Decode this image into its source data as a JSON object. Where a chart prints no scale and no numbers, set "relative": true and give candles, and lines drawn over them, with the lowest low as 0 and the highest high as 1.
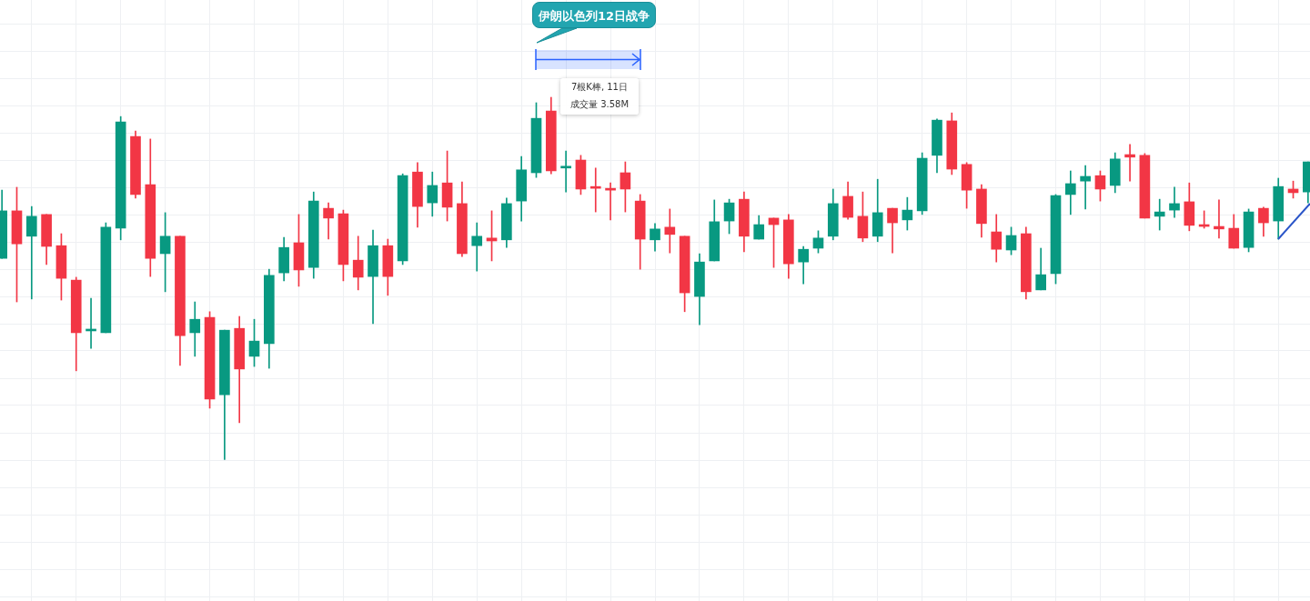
{
  "chart_data": {
    "type": "candlestick",
    "relative": true,
    "grid": true,
    "legend": false,
    "tick_labels": false,
    "annotations": [
      "伊朗以色列12日战争",
      "7根K棒, 11日",
      "成交量 3.58M"
    ],
    "categories": [
      null,
      null,
      null,
      null,
      null,
      null,
      null,
      null,
      null,
      null,
      null,
      null,
      null,
      null,
      null,
      null,
      null,
      null,
      null,
      null,
      null,
      null,
      null,
      null,
      null,
      null,
      null,
      null,
      null,
      null,
      null,
      null,
      null,
      null,
      null,
      null,
      null,
      null,
      null,
      null,
      null,
      null,
      null,
      null,
      null,
      null,
      null,
      null,
      null,
      null,
      null,
      null,
      null,
      null,
      null,
      null,
      null,
      null,
      null,
      null,
      null,
      null,
      null,
      null,
      null,
      null,
      null,
      null,
      null,
      null,
      null,
      null,
      null,
      null,
      null,
      null,
      null,
      null,
      null,
      null,
      null,
      null,
      null,
      null,
      null,
      null,
      null,
      null,
      null
    ],
    "ohlc": [
      [
        0.556,
        0.744,
        0.556,
        0.687
      ],
      [
        0.687,
        0.752,
        0.436,
        0.596
      ],
      [
        0.617,
        0.699,
        0.444,
        0.672
      ],
      [
        0.677,
        0.677,
        0.539,
        0.589
      ],
      [
        0.591,
        0.624,
        0.441,
        0.501
      ],
      [
        0.496,
        0.504,
        0.246,
        0.351
      ],
      [
        0.356,
        0.446,
        0.308,
        0.361
      ],
      [
        0.351,
        0.654,
        0.351,
        0.642
      ],
      [
        0.639,
        0.947,
        0.607,
        0.932
      ],
      [
        0.892,
        0.907,
        0.722,
        0.732
      ],
      [
        0.759,
        0.885,
        0.506,
        0.556
      ],
      [
        0.569,
        0.682,
        0.464,
        0.617
      ],
      [
        0.617,
        0.617,
        0.261,
        0.343
      ],
      [
        0.351,
        0.436,
        0.286,
        0.388
      ],
      [
        0.393,
        0.409,
        0.143,
        0.168
      ],
      [
        0.18,
        0.358,
        0,
        0.358
      ],
      [
        0.363,
        0.396,
        0.103,
        0.251
      ],
      [
        0.286,
        0.388,
        0.258,
        0.328
      ],
      [
        0.321,
        0.526,
        0.253,
        0.509
      ],
      [
        0.516,
        0.614,
        0.494,
        0.586
      ],
      [
        0.599,
        0.677,
        0.479,
        0.524
      ],
      [
        0.531,
        0.739,
        0.501,
        0.714
      ],
      [
        0.694,
        0.709,
        0.609,
        0.667
      ],
      [
        0.679,
        0.689,
        0.494,
        0.539
      ],
      [
        0.551,
        0.617,
        0.469,
        0.504
      ],
      [
        0.506,
        0.634,
        0.376,
        0.591
      ],
      [
        0.591,
        0.609,
        0.454,
        0.506
      ],
      [
        0.549,
        0.789,
        0.539,
        0.784
      ],
      [
        0.794,
        0.82,
        0.642,
        0.699
      ],
      [
        0.709,
        0.794,
        0.672,
        0.757
      ],
      [
        0.764,
        0.852,
        0.659,
        0.697
      ],
      [
        0.707,
        0.767,
        0.561,
        0.569
      ],
      [
        0.591,
        0.654,
        0.521,
        0.617
      ],
      [
        0.612,
        0.687,
        0.549,
        0.604
      ],
      [
        0.607,
        0.722,
        0.586,
        0.707
      ],
      [
        0.714,
        0.837,
        0.659,
        0.8
      ],
      [
        0.792,
        0.985,
        0.779,
        0.942
      ],
      [
        0.962,
        1,
        0.789,
        0.797
      ],
      [
        0.805,
        0.852,
        0.739,
        0.81
      ],
      [
        0.827,
        0.84,
        0.732,
        0.747
      ],
      [
        0.754,
        0.805,
        0.684,
        0.749
      ],
      [
        0.749,
        0.764,
        0.662,
        0.744
      ],
      [
        0.792,
        0.822,
        0.684,
        0.747
      ],
      [
        0.714,
        0.732,
        0.526,
        0.609
      ],
      [
        0.607,
        0.652,
        0.576,
        0.637
      ],
      [
        0.642,
        0.692,
        0.571,
        0.622
      ],
      [
        0.617,
        0.617,
        0.409,
        0.461
      ],
      [
        0.451,
        0.569,
        0.373,
        0.546
      ],
      [
        0.549,
        0.717,
        0.549,
        0.657
      ],
      [
        0.659,
        0.719,
        0.624,
        0.709
      ],
      [
        0.719,
        0.739,
        0.574,
        0.617
      ],
      [
        0.609,
        0.674,
        0.609,
        0.649
      ],
      [
        0.667,
        0.667,
        0.531,
        0.649
      ],
      [
        0.662,
        0.677,
        0.501,
        0.541
      ],
      [
        0.546,
        0.589,
        0.486,
        0.581
      ],
      [
        0.584,
        0.632,
        0.571,
        0.612
      ],
      [
        0.617,
        0.747,
        0.607,
        0.707
      ],
      [
        0.727,
        0.767,
        0.664,
        0.669
      ],
      [
        0.672,
        0.739,
        0.602,
        0.612
      ],
      [
        0.617,
        0.774,
        0.602,
        0.682
      ],
      [
        0.694,
        0.694,
        0.571,
        0.654
      ],
      [
        0.662,
        0.724,
        0.634,
        0.689
      ],
      [
        0.687,
        0.847,
        0.677,
        0.832
      ],
      [
        0.84,
        0.94,
        0.792,
        0.937
      ],
      [
        0.935,
        0.957,
        0.787,
        0.802
      ],
      [
        0.815,
        0.82,
        0.694,
        0.744
      ],
      [
        0.747,
        0.759,
        0.614,
        0.652
      ],
      [
        0.629,
        0.677,
        0.546,
        0.581
      ],
      [
        0.579,
        0.642,
        0.566,
        0.619
      ],
      [
        0.624,
        0.642,
        0.444,
        0.464
      ],
      [
        0.469,
        0.584,
        0.469,
        0.511
      ],
      [
        0.514,
        0.732,
        0.486,
        0.729
      ],
      [
        0.732,
        0.797,
        0.677,
        0.762
      ],
      [
        0.769,
        0.812,
        0.692,
        0.782
      ],
      [
        0.784,
        0.797,
        0.714,
        0.747
      ],
      [
        0.757,
        0.847,
        0.737,
        0.83
      ],
      [
        0.842,
        0.87,
        0.769,
        0.835
      ],
      [
        0.84,
        0.845,
        0.667,
        0.667
      ],
      [
        0.672,
        0.719,
        0.634,
        0.684
      ],
      [
        0.689,
        0.752,
        0.669,
        0.707
      ],
      [
        0.712,
        0.764,
        0.632,
        0.647
      ],
      [
        0.649,
        0.687,
        0.639,
        0.644
      ],
      [
        0.644,
        0.717,
        0.612,
        0.637
      ],
      [
        0.639,
        0.677,
        0.584,
        0.584
      ],
      [
        0.586,
        0.692,
        0.574,
        0.684
      ],
      [
        0.694,
        0.697,
        0.617,
        0.654
      ],
      [
        0.659,
        0.777,
        0.609,
        0.754
      ],
      [
        0.747,
        0.769,
        0.722,
        0.737
      ],
      [
        0.739,
        0.822,
        0.709,
        0.822
      ]
    ],
    "colors": [
      "#089981",
      "#f23645",
      "#089981",
      "#f23645",
      "#f23645",
      "#f23645",
      "#089981",
      "#089981",
      "#089981",
      "#f23645",
      "#f23645",
      "#089981",
      "#f23645",
      "#089981",
      "#f23645",
      "#089981",
      "#f23645",
      "#089981",
      "#089981",
      "#089981",
      "#f23645",
      "#089981",
      "#f23645",
      "#f23645",
      "#f23645",
      "#089981",
      "#f23645",
      "#089981",
      "#f23645",
      "#089981",
      "#f23645",
      "#f23645",
      "#089981",
      "#f23645",
      "#089981",
      "#089981",
      "#089981",
      "#f23645",
      "#089981",
      "#f23645",
      "#f23645",
      "#f23645",
      "#f23645",
      "#f23645",
      "#089981",
      "#f23645",
      "#f23645",
      "#089981",
      "#089981",
      "#089981",
      "#f23645",
      "#089981",
      "#f23645",
      "#f23645",
      "#089981",
      "#089981",
      "#089981",
      "#f23645",
      "#f23645",
      "#089981",
      "#f23645",
      "#089981",
      "#089981",
      "#089981",
      "#f23645",
      "#f23645",
      "#f23645",
      "#f23645",
      "#089981",
      "#f23645",
      "#089981",
      "#089981",
      "#089981",
      "#089981",
      "#f23645",
      "#089981",
      "#f23645",
      "#f23645",
      "#089981",
      "#089981",
      "#f23645",
      "#f23645",
      "#f23645",
      "#f23645",
      "#089981",
      "#f23645",
      "#089981",
      "#f23645",
      "#089981"
    ]
  }
}
